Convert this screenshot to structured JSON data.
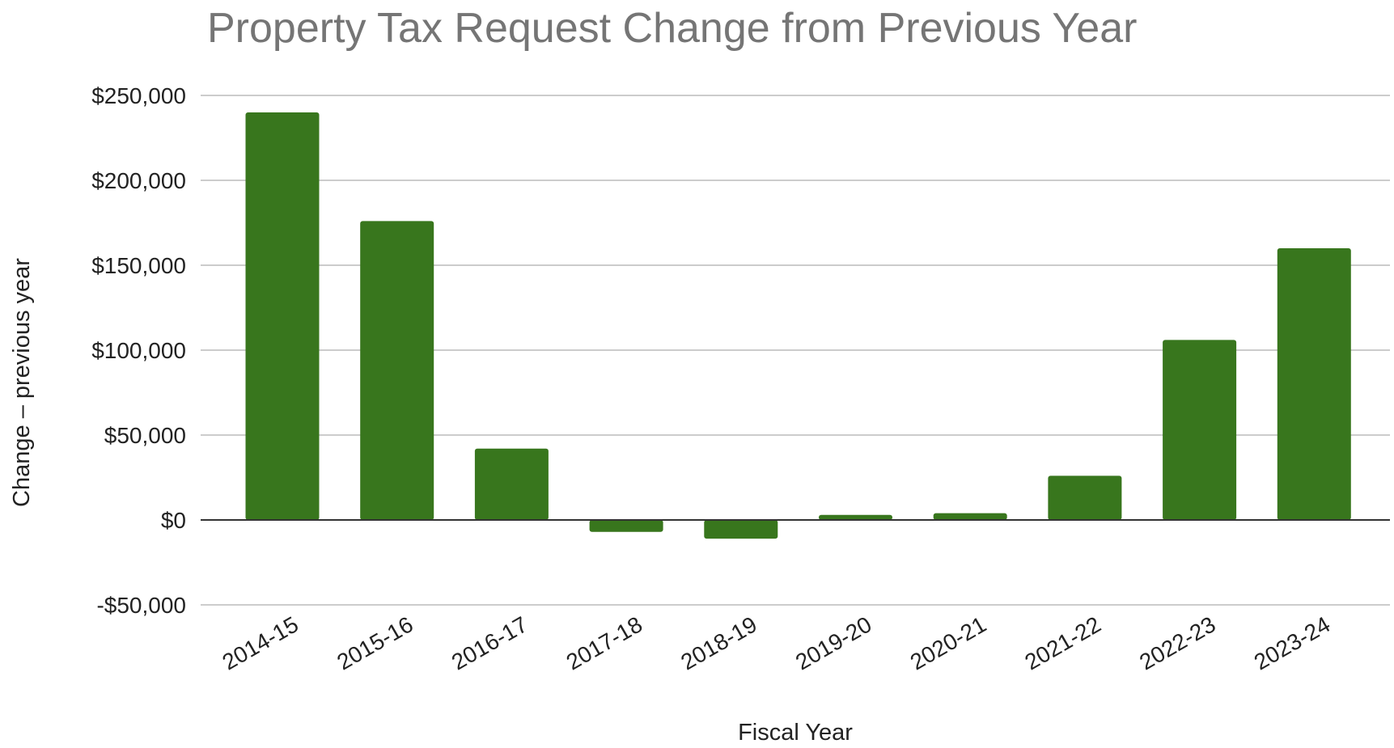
{
  "chart_data": {
    "type": "bar",
    "title": "Property Tax Request Change from Previous Year",
    "xlabel": "Fiscal Year",
    "ylabel": "Change – previous year",
    "categories": [
      "2014-15",
      "2015-16",
      "2016-17",
      "2017-18",
      "2018-19",
      "2019-20",
      "2020-21",
      "2021-22",
      "2022-23",
      "2023-24"
    ],
    "values": [
      240000,
      176000,
      42000,
      -7000,
      -11000,
      3000,
      4000,
      26000,
      106000,
      160000
    ],
    "ylim": [
      -50000,
      250000
    ],
    "yticks": [
      -50000,
      0,
      50000,
      100000,
      150000,
      200000,
      250000
    ],
    "ytick_labels": [
      "-$50,000",
      "$0",
      "$50,000",
      "$100,000",
      "$150,000",
      "$200,000",
      "$250,000"
    ],
    "grid": true,
    "legend": "none",
    "colors": {
      "bar": "#38761d",
      "title": "#757575",
      "grid": "#cccccc",
      "zero_line": "#333333",
      "text": "#222222"
    }
  }
}
